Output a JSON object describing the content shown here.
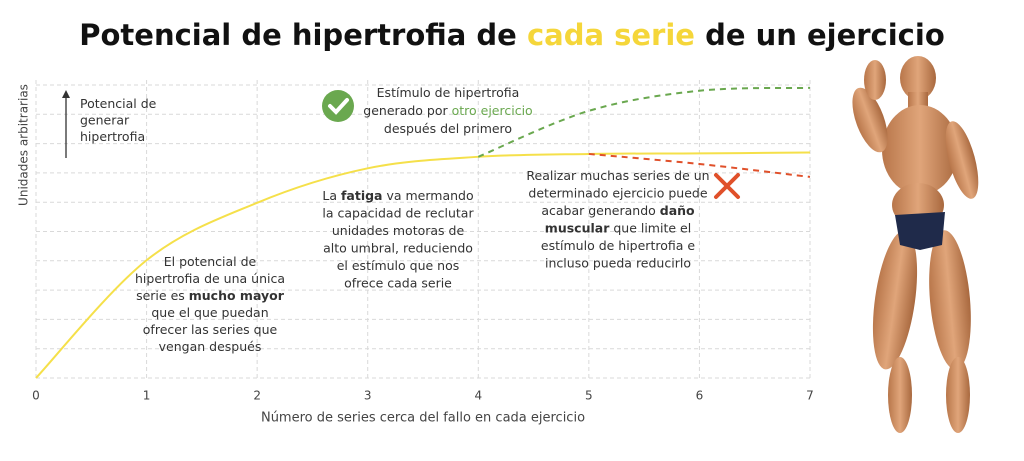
{
  "chart_data": {
    "type": "line",
    "title": [
      "Potencial de hipertrofia de ",
      {
        "text": "cada serie",
        "color": "#f5d63a"
      },
      " de un ejercicio"
    ],
    "x_label": "Número de series cerca del fallo en cada ejercicio",
    "y_label": "Unidades arbitrarias",
    "x": [
      0,
      1,
      2,
      3,
      4,
      5,
      6,
      7
    ],
    "xlim": [
      0,
      7
    ],
    "xticks": [
      0,
      1,
      2,
      3,
      4,
      5,
      6,
      7
    ],
    "ylim": [
      0,
      10.2
    ],
    "series": [
      {
        "color": "#f5e04a",
        "dashed": false,
        "values": [
          0,
          4.1,
          6.1,
          7.3,
          7.7,
          7.8,
          7.82,
          7.85
        ]
      },
      {
        "color": "#6aa84f",
        "dashed": true,
        "values": [
          null,
          null,
          null,
          null,
          7.7,
          9.3,
          10.0,
          10.1
        ]
      },
      {
        "color": "#e0502a",
        "dashed": true,
        "values": [
          null,
          null,
          null,
          null,
          null,
          7.8,
          7.45,
          7.0
        ]
      }
    ],
    "annotations": [
      {
        "lines": [
          [
            "Potencial de"
          ],
          [
            "generar"
          ],
          [
            "hipertrofia"
          ]
        ]
      },
      {
        "lines": [
          [
            "Estímulo de hipertrofia"
          ],
          [
            "generado por ",
            {
              "text": "otro ejercicio",
              "color": "#6aa84f"
            }
          ],
          [
            "después del primero"
          ]
        ]
      },
      {
        "lines": [
          [
            "El potencial de"
          ],
          [
            "hipertrofia de una única"
          ],
          [
            "serie es ",
            {
              "text": "mucho mayor",
              "bold": true
            }
          ],
          [
            "que el que puedan"
          ],
          [
            "ofrecer las series que"
          ],
          [
            "vengan después"
          ]
        ]
      },
      {
        "lines": [
          [
            "La ",
            {
              "text": "fatiga",
              "bold": true
            },
            " va mermando"
          ],
          [
            "la capacidad de reclutar"
          ],
          [
            "unidades motoras de"
          ],
          [
            "alto umbral, reduciendo"
          ],
          [
            "el estímulo que nos"
          ],
          [
            "ofrece cada serie"
          ]
        ]
      },
      {
        "lines": [
          [
            "Realizar muchas series de un"
          ],
          [
            "determinado ejercicio puede"
          ],
          [
            "acabar generando ",
            {
              "text": "daño",
              "bold": true
            }
          ],
          [
            {
              "text": "muscular",
              "bold": true
            },
            " que limite el"
          ],
          [
            "estímulo de hipertrofia e"
          ],
          [
            "incluso pueda reducirlo"
          ]
        ]
      }
    ]
  }
}
